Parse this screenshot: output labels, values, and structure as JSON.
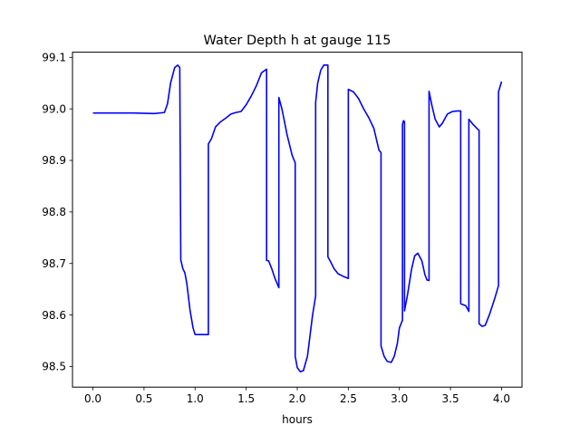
{
  "chart_data": {
    "type": "line",
    "title": "Water Depth h at gauge 115",
    "xlabel": "hours",
    "ylabel": "",
    "xlim": [
      -0.2,
      4.2
    ],
    "ylim": [
      98.46,
      99.11
    ],
    "xticks": [
      0.0,
      0.5,
      1.0,
      1.5,
      2.0,
      2.5,
      3.0,
      3.5,
      4.0
    ],
    "xtick_labels": [
      "0.0",
      "0.5",
      "1.0",
      "1.5",
      "2.0",
      "2.5",
      "3.0",
      "3.5",
      "4.0"
    ],
    "yticks": [
      98.5,
      98.6,
      98.7,
      98.8,
      98.9,
      99.0,
      99.1
    ],
    "ytick_labels": [
      "98.5",
      "98.6",
      "98.7",
      "98.8",
      "98.9",
      "99.0",
      "99.1"
    ],
    "grid": false,
    "series": [
      {
        "color": "#0000ff",
        "x": [
          0.0,
          0.2,
          0.4,
          0.6,
          0.7,
          0.73,
          0.76,
          0.8,
          0.83,
          0.85,
          0.86,
          0.86,
          0.88,
          0.9,
          0.92,
          0.95,
          0.98,
          1.0,
          1.05,
          1.1,
          1.13,
          1.13,
          1.16,
          1.2,
          1.25,
          1.3,
          1.35,
          1.4,
          1.45,
          1.5,
          1.55,
          1.6,
          1.65,
          1.7,
          1.7,
          1.72,
          1.75,
          1.78,
          1.82,
          1.82,
          1.85,
          1.9,
          1.95,
          1.98,
          1.98,
          2.0,
          2.03,
          2.06,
          2.1,
          2.15,
          2.18,
          2.18,
          2.2,
          2.23,
          2.26,
          2.3,
          2.3,
          2.33,
          2.36,
          2.4,
          2.45,
          2.5,
          2.5,
          2.55,
          2.6,
          2.65,
          2.7,
          2.75,
          2.8,
          2.82,
          2.82,
          2.85,
          2.88,
          2.92,
          2.95,
          2.98,
          3.0,
          3.03,
          3.03,
          3.04,
          3.05,
          3.05,
          3.08,
          3.12,
          3.15,
          3.18,
          3.22,
          3.25,
          3.27,
          3.29,
          3.29,
          3.32,
          3.35,
          3.39,
          3.42,
          3.47,
          3.52,
          3.57,
          3.6,
          3.6,
          3.65,
          3.68,
          3.68,
          3.72,
          3.78,
          3.78,
          3.81,
          3.84,
          3.88,
          3.93,
          3.97,
          3.97,
          4.0
        ],
        "y": [
          98.992,
          98.992,
          98.992,
          98.991,
          98.993,
          99.01,
          99.05,
          99.08,
          99.085,
          99.08,
          98.707,
          98.707,
          98.69,
          98.682,
          98.66,
          98.61,
          98.575,
          98.562,
          98.562,
          98.562,
          98.562,
          98.932,
          98.942,
          98.965,
          98.975,
          98.982,
          98.99,
          98.993,
          98.995,
          99.008,
          99.025,
          99.045,
          99.07,
          99.077,
          98.706,
          98.705,
          98.69,
          98.672,
          98.653,
          99.022,
          99.0,
          98.95,
          98.91,
          98.895,
          98.52,
          98.498,
          98.49,
          98.492,
          98.52,
          98.6,
          98.637,
          99.012,
          99.05,
          99.075,
          99.085,
          99.085,
          98.713,
          98.702,
          98.69,
          98.68,
          98.675,
          98.671,
          99.038,
          99.033,
          99.02,
          99.0,
          98.983,
          98.962,
          98.92,
          98.915,
          98.54,
          98.52,
          98.51,
          98.508,
          98.52,
          98.545,
          98.575,
          98.59,
          98.97,
          98.977,
          98.975,
          98.608,
          98.64,
          98.69,
          98.715,
          98.72,
          98.705,
          98.678,
          98.668,
          98.667,
          99.034,
          99.005,
          98.98,
          98.965,
          98.972,
          98.99,
          98.995,
          98.996,
          98.996,
          98.622,
          98.618,
          98.607,
          98.98,
          98.97,
          98.958,
          98.583,
          98.578,
          98.58,
          98.6,
          98.63,
          98.657,
          99.033,
          99.053
        ]
      }
    ]
  }
}
